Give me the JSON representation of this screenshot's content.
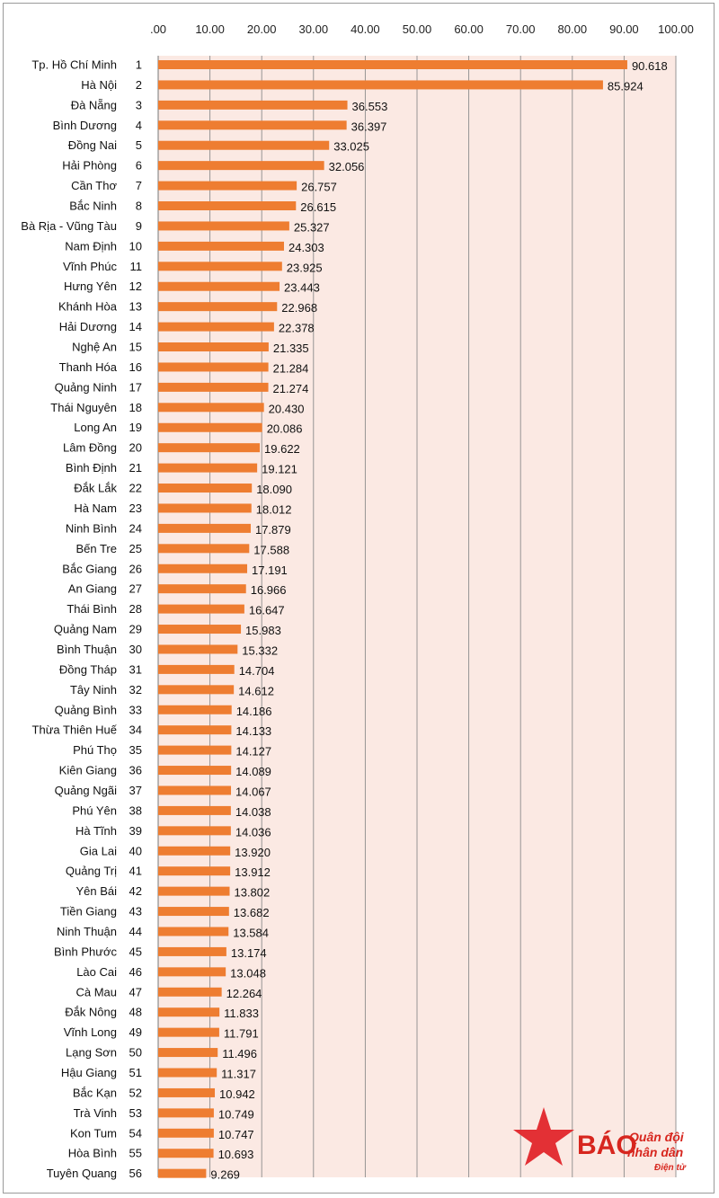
{
  "chart_data": {
    "type": "bar",
    "orientation": "horizontal",
    "x_ticks": [
      ".00",
      "10.00",
      "20.00",
      "30.00",
      "40.00",
      "50.00",
      "60.00",
      "70.00",
      "80.00",
      "90.00",
      "100.00"
    ],
    "xlim": [
      0,
      100
    ],
    "axis_position": "top",
    "grid": true,
    "colors": {
      "bar": "#ee7d31",
      "plot_bg": "#fbe9e3",
      "grid": "#8c8c8c"
    },
    "rows": [
      {
        "label": "Tp. Hồ Chí Minh",
        "rank": "1",
        "value": 90.618,
        "value_label": "90.618"
      },
      {
        "label": "Hà Nội",
        "rank": "2",
        "value": 85.924,
        "value_label": "85.924"
      },
      {
        "label": "Đà Nẵng",
        "rank": "3",
        "value": 36.553,
        "value_label": "36.553"
      },
      {
        "label": "Bình Dương",
        "rank": "4",
        "value": 36.397,
        "value_label": "36.397"
      },
      {
        "label": "Đồng Nai",
        "rank": "5",
        "value": 33.025,
        "value_label": "33.025"
      },
      {
        "label": "Hải Phòng",
        "rank": "6",
        "value": 32.056,
        "value_label": "32.056"
      },
      {
        "label": "Cần Thơ",
        "rank": "7",
        "value": 26.757,
        "value_label": "26.757"
      },
      {
        "label": "Bắc Ninh",
        "rank": "8",
        "value": 26.615,
        "value_label": "26.615"
      },
      {
        "label": "Bà Rịa - Vũng Tàu",
        "rank": "9",
        "value": 25.327,
        "value_label": "25.327"
      },
      {
        "label": "Nam Định",
        "rank": "10",
        "value": 24.303,
        "value_label": "24.303"
      },
      {
        "label": "Vĩnh Phúc",
        "rank": "11",
        "value": 23.925,
        "value_label": "23.925"
      },
      {
        "label": "Hưng Yên",
        "rank": "12",
        "value": 23.443,
        "value_label": "23.443"
      },
      {
        "label": "Khánh Hòa",
        "rank": "13",
        "value": 22.968,
        "value_label": "22.968"
      },
      {
        "label": "Hải Dương",
        "rank": "14",
        "value": 22.378,
        "value_label": "22.378"
      },
      {
        "label": "Nghệ An",
        "rank": "15",
        "value": 21.335,
        "value_label": "21.335"
      },
      {
        "label": "Thanh Hóa",
        "rank": "16",
        "value": 21.284,
        "value_label": "21.284"
      },
      {
        "label": "Quảng Ninh",
        "rank": "17",
        "value": 21.274,
        "value_label": "21.274"
      },
      {
        "label": "Thái Nguyên",
        "rank": "18",
        "value": 20.43,
        "value_label": "20.430"
      },
      {
        "label": "Long An",
        "rank": "19",
        "value": 20.086,
        "value_label": "20.086"
      },
      {
        "label": "Lâm Đồng",
        "rank": "20",
        "value": 19.622,
        "value_label": "19.622"
      },
      {
        "label": "Bình Định",
        "rank": "21",
        "value": 19.121,
        "value_label": "19.121"
      },
      {
        "label": "Đắk Lắk",
        "rank": "22",
        "value": 18.09,
        "value_label": "18.090"
      },
      {
        "label": "Hà Nam",
        "rank": "23",
        "value": 18.012,
        "value_label": "18.012"
      },
      {
        "label": "Ninh Bình",
        "rank": "24",
        "value": 17.879,
        "value_label": "17.879"
      },
      {
        "label": "Bến Tre",
        "rank": "25",
        "value": 17.588,
        "value_label": "17.588"
      },
      {
        "label": "Bắc Giang",
        "rank": "26",
        "value": 17.191,
        "value_label": "17.191"
      },
      {
        "label": "An Giang",
        "rank": "27",
        "value": 16.966,
        "value_label": "16.966"
      },
      {
        "label": "Thái Bình",
        "rank": "28",
        "value": 16.647,
        "value_label": "16.647"
      },
      {
        "label": "Quảng Nam",
        "rank": "29",
        "value": 15.983,
        "value_label": "15.983"
      },
      {
        "label": "Bình Thuận",
        "rank": "30",
        "value": 15.332,
        "value_label": "15.332"
      },
      {
        "label": "Đồng Tháp",
        "rank": "31",
        "value": 14.704,
        "value_label": "14.704"
      },
      {
        "label": "Tây Ninh",
        "rank": "32",
        "value": 14.612,
        "value_label": "14.612"
      },
      {
        "label": "Quảng Bình",
        "rank": "33",
        "value": 14.186,
        "value_label": "14.186"
      },
      {
        "label": "Thừa Thiên Huế",
        "rank": "34",
        "value": 14.133,
        "value_label": "14.133"
      },
      {
        "label": "Phú Thọ",
        "rank": "35",
        "value": 14.127,
        "value_label": "14.127"
      },
      {
        "label": "Kiên Giang",
        "rank": "36",
        "value": 14.089,
        "value_label": "14.089"
      },
      {
        "label": "Quảng Ngãi",
        "rank": "37",
        "value": 14.067,
        "value_label": "14.067"
      },
      {
        "label": "Phú Yên",
        "rank": "38",
        "value": 14.038,
        "value_label": "14.038"
      },
      {
        "label": "Hà Tĩnh",
        "rank": "39",
        "value": 14.036,
        "value_label": "14.036"
      },
      {
        "label": "Gia Lai",
        "rank": "40",
        "value": 13.92,
        "value_label": "13.920"
      },
      {
        "label": "Quảng Trị",
        "rank": "41",
        "value": 13.912,
        "value_label": "13.912"
      },
      {
        "label": "Yên Bái",
        "rank": "42",
        "value": 13.802,
        "value_label": "13.802"
      },
      {
        "label": "Tiền Giang",
        "rank": "43",
        "value": 13.682,
        "value_label": "13.682"
      },
      {
        "label": "Ninh Thuận",
        "rank": "44",
        "value": 13.584,
        "value_label": "13.584"
      },
      {
        "label": "Bình Phước",
        "rank": "45",
        "value": 13.174,
        "value_label": "13.174"
      },
      {
        "label": "Lào Cai",
        "rank": "46",
        "value": 13.048,
        "value_label": "13.048"
      },
      {
        "label": "Cà Mau",
        "rank": "47",
        "value": 12.264,
        "value_label": "12.264"
      },
      {
        "label": "Đắk Nông",
        "rank": "48",
        "value": 11.833,
        "value_label": "11.833"
      },
      {
        "label": "Vĩnh Long",
        "rank": "49",
        "value": 11.791,
        "value_label": "11.791"
      },
      {
        "label": "Lạng Sơn",
        "rank": "50",
        "value": 11.496,
        "value_label": "11.496"
      },
      {
        "label": "Hậu Giang",
        "rank": "51",
        "value": 11.317,
        "value_label": "11.317"
      },
      {
        "label": "Bắc Kạn",
        "rank": "52",
        "value": 10.942,
        "value_label": "10.942"
      },
      {
        "label": "Trà Vinh",
        "rank": "53",
        "value": 10.749,
        "value_label": "10.749"
      },
      {
        "label": "Kon Tum",
        "rank": "54",
        "value": 10.747,
        "value_label": "10.747"
      },
      {
        "label": "Hòa Bình",
        "rank": "55",
        "value": 10.693,
        "value_label": "10.693"
      },
      {
        "label": "Tuyên Quang",
        "rank": "56",
        "value": 9.269,
        "value_label": "9.269"
      }
    ]
  },
  "watermark": {
    "brand": "BÁO",
    "line1": "Quân đội",
    "line2": "nhân dân",
    "line3": "Điện tử",
    "icon": "red-star-icon",
    "brand_color": "#d7261e",
    "star_color": "#e2262b"
  }
}
